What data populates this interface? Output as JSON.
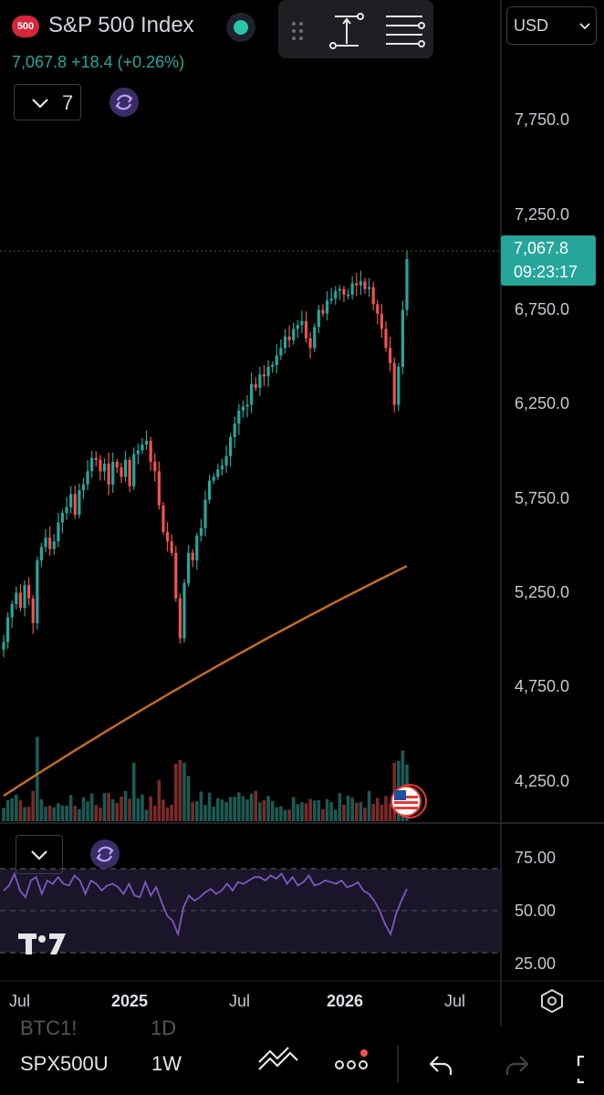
{
  "header": {
    "badge": "500",
    "symbol_title": "S&P 500 Index",
    "price_line": "7,067.8 +18.4 (+0.26%)",
    "indicators_count": "7",
    "currency": "USD",
    "status_color": "#26c6a6"
  },
  "price_axis": {
    "labels": [
      "7,750.0",
      "7,250.0",
      "6,750.0",
      "6,250.0",
      "5,750.0",
      "5,250.0",
      "4,750.0",
      "4,250.0"
    ],
    "current_price": "7,067.8",
    "countdown": "09:23:17"
  },
  "rsi_axis": {
    "labels": [
      "75.00",
      "50.00",
      "25.00"
    ]
  },
  "time_axis": {
    "labels": [
      {
        "text": "Jul",
        "bold": false
      },
      {
        "text": "2025",
        "bold": true
      },
      {
        "text": "Jul",
        "bold": false
      },
      {
        "text": "2026",
        "bold": true
      },
      {
        "text": "Jul",
        "bold": false
      }
    ]
  },
  "bottom_bar": {
    "prev_symbol": "BTC1!",
    "prev_interval": "1D",
    "symbol": "SPX500U",
    "interval": "1W"
  },
  "watermark": "TV",
  "colors": {
    "up": "#26a69a",
    "down": "#ef5350",
    "ma": "#c56a1e",
    "rsi": "#7e57c2",
    "accent": "#26a69a"
  },
  "chart_data": {
    "type": "candlestick",
    "interval": "1W",
    "ylim": [
      4000,
      8000
    ],
    "price_close": [
      5050,
      5180,
      5250,
      5310,
      5230,
      5350,
      5280,
      5150,
      5480,
      5550,
      5600,
      5540,
      5580,
      5680,
      5730,
      5760,
      5830,
      5720,
      5850,
      5880,
      5950,
      6020,
      6010,
      5950,
      5990,
      5880,
      6000,
      5970,
      5920,
      6010,
      5870,
      6040,
      6060,
      6090,
      6110,
      6000,
      5950,
      5770,
      5630,
      5580,
      5520,
      5280,
      5070,
      5360,
      5520,
      5480,
      5610,
      5650,
      5800,
      5900,
      5920,
      5960,
      5980,
      6030,
      6130,
      6200,
      6270,
      6290,
      6300,
      6410,
      6390,
      6460,
      6450,
      6500,
      6510,
      6560,
      6600,
      6660,
      6640,
      6700,
      6720,
      6740,
      6650,
      6600,
      6710,
      6800,
      6780,
      6850,
      6860,
      6900,
      6910,
      6880,
      6880,
      6940,
      6930,
      6950,
      6910,
      6920,
      6830,
      6780,
      6700,
      6600,
      6520,
      6300,
      6500,
      6800,
      7068
    ],
    "rsi": [
      62,
      65,
      72,
      62,
      58,
      68,
      70,
      60,
      68,
      66,
      70,
      66,
      65,
      71,
      68,
      60,
      68,
      66,
      62,
      65,
      66,
      64,
      60,
      66,
      59,
      58,
      67,
      59,
      64,
      55,
      47,
      44,
      36,
      52,
      59,
      56,
      58,
      61,
      63,
      60,
      62,
      66,
      62,
      67,
      66,
      68,
      70,
      70,
      68,
      71,
      69,
      72,
      66,
      70,
      65,
      67,
      71,
      65,
      66,
      68,
      67,
      66,
      68,
      64,
      65,
      67,
      62,
      60,
      56,
      50,
      42,
      36,
      48,
      56,
      63
    ],
    "ma": [
      4240,
      4930,
      5450
    ]
  }
}
